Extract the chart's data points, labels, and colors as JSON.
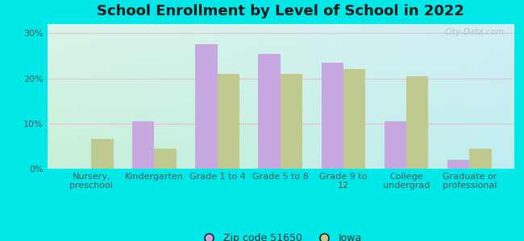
{
  "title": "School Enrollment by Level of School in 2022",
  "categories": [
    "Nursery,\npreschool",
    "Kindergarten",
    "Grade 1 to 4",
    "Grade 5 to 8",
    "Grade 9 to\n12",
    "College\nundergrad",
    "Graduate or\nprofessional"
  ],
  "zip_values": [
    0,
    10.5,
    27.5,
    25.5,
    23.5,
    10.5,
    2.0
  ],
  "iowa_values": [
    6.5,
    4.5,
    21.0,
    21.0,
    22.0,
    20.5,
    4.5
  ],
  "zip_color": "#c8a8e0",
  "iowa_color": "#c0c990",
  "background_outer": "#00e8e8",
  "background_inner_tl": "#daf5e8",
  "background_inner_tr": "#d0eff5",
  "background_inner_bl": "#c8f0d8",
  "background_inner_br": "#c0eef0",
  "grid_color": "#e8c0d0",
  "ylim": [
    0,
    32
  ],
  "yticks": [
    0,
    10,
    20,
    30
  ],
  "ytick_labels": [
    "0%",
    "10%",
    "20%",
    "30%"
  ],
  "legend_zip_label": "Zip code 51650",
  "legend_iowa_label": "Iowa",
  "title_fontsize": 13,
  "tick_fontsize": 8,
  "legend_fontsize": 9,
  "bar_width": 0.35,
  "watermark": "City-Data.com"
}
